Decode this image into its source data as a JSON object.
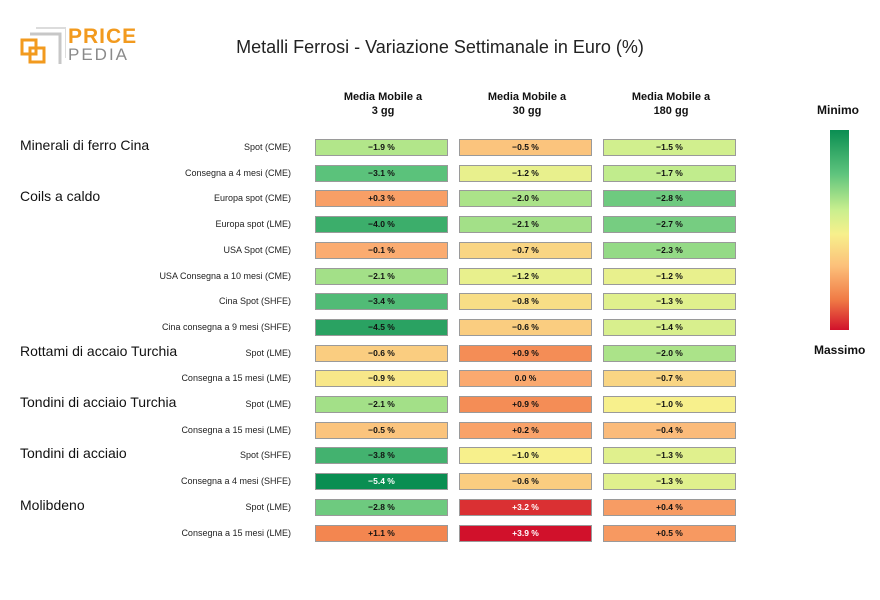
{
  "logo": {
    "line1": "PRICE",
    "line2": "PEDIA"
  },
  "chart_data": {
    "type": "table",
    "title": "Metalli Ferrosi - Variazione Settimanale in Euro (%)",
    "columns": [
      {
        "line1": "Media Mobile a",
        "line2": "3 gg"
      },
      {
        "line1": "Media Mobile a",
        "line2": "30 gg"
      },
      {
        "line1": "Media Mobile a",
        "line2": "180 gg"
      }
    ],
    "value_format_suffix": " %",
    "groups": [
      {
        "name": "Minerali di ferro Cina",
        "rows": [
          {
            "label": "Spot (CME)",
            "values": [
              -1.9,
              -0.5,
              -1.5
            ]
          },
          {
            "label": "Consegna a 4 mesi (CME)",
            "values": [
              -3.1,
              -1.2,
              -1.7
            ]
          }
        ]
      },
      {
        "name": "Coils a caldo",
        "rows": [
          {
            "label": "Europa spot (CME)",
            "values": [
              0.3,
              -2.0,
              -2.8
            ]
          },
          {
            "label": "Europa spot (LME)",
            "values": [
              -4.0,
              -2.1,
              -2.7
            ]
          },
          {
            "label": "USA Spot (CME)",
            "values": [
              -0.1,
              -0.7,
              -2.3
            ]
          },
          {
            "label": "USA Consegna a 10 mesi (CME)",
            "values": [
              -2.1,
              -1.2,
              -1.2
            ]
          },
          {
            "label": "Cina Spot (SHFE)",
            "values": [
              -3.4,
              -0.8,
              -1.3
            ]
          },
          {
            "label": "Cina consegna a 9 mesi (SHFE)",
            "values": [
              -4.5,
              -0.6,
              -1.4
            ]
          }
        ]
      },
      {
        "name": "Rottami di accaio Turchia",
        "rows": [
          {
            "label": "Spot (LME)",
            "values": [
              -0.6,
              0.9,
              -2.0
            ]
          },
          {
            "label": "Consegna a 15 mesi (LME)",
            "values": [
              -0.9,
              0.0,
              -0.7
            ]
          }
        ]
      },
      {
        "name": "Tondini di acciaio Turchia",
        "rows": [
          {
            "label": "Spot (LME)",
            "values": [
              -2.1,
              0.9,
              -1.0
            ]
          },
          {
            "label": "Consegna a 15 mesi (LME)",
            "values": [
              -0.5,
              0.2,
              -0.4
            ]
          }
        ]
      },
      {
        "name": "Tondini di acciaio",
        "rows": [
          {
            "label": "Spot (SHFE)",
            "values": [
              -3.8,
              -1.0,
              -1.3
            ]
          },
          {
            "label": "Consegna a 4 mesi (SHFE)",
            "values": [
              -5.4,
              -0.6,
              -1.3
            ]
          }
        ]
      },
      {
        "name": "Molibdeno",
        "rows": [
          {
            "label": "Spot (LME)",
            "values": [
              -2.8,
              3.2,
              0.4
            ]
          },
          {
            "label": "Consegna a 15 mesi (LME)",
            "values": [
              1.1,
              3.9,
              0.5
            ]
          }
        ]
      }
    ],
    "legend": {
      "top": "Minimo",
      "bottom": "Massimo"
    },
    "colors": {
      "min": "#0a8e52",
      "mid_green": "#c9ef8e",
      "mid": "#f7f08c",
      "orange": "#f07a45",
      "max": "#d1112b"
    }
  }
}
